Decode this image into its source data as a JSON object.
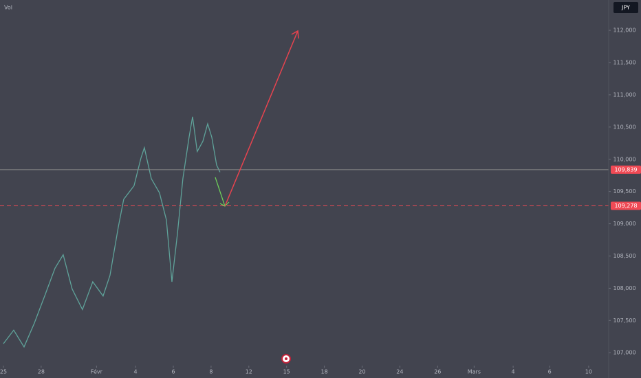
{
  "chart_data": {
    "type": "line",
    "top_label": "Vol",
    "currency": "JPY",
    "color": "#5fa39a",
    "x": [
      0,
      0.82,
      1.64,
      2.46,
      3.28,
      4.1,
      4.75,
      5.46,
      6.28,
      7.1,
      7.92,
      8.47,
      9.13,
      9.56,
      10.38,
      10.93,
      11.2,
      11.75,
      12.4,
      12.95,
      13.39,
      13.83,
      14.26,
      14.75,
      15.03,
      15.4,
      15.85,
      16.23,
      16.56,
      16.94,
      17.21
    ],
    "values": [
      107140,
      107350,
      107090,
      107460,
      107880,
      108310,
      108520,
      107990,
      107670,
      108100,
      107880,
      108200,
      108950,
      109380,
      109590,
      110020,
      110180,
      109700,
      109480,
      109060,
      108100,
      108850,
      109700,
      110340,
      110660,
      110120,
      110280,
      110550,
      110340,
      109910,
      109800
    ],
    "xlim": [
      -0.27,
      48.09
    ],
    "xticks": [
      {
        "value": 0,
        "label": "25"
      },
      {
        "value": 3,
        "label": "28"
      },
      {
        "value": 7.4,
        "label": "Févr"
      },
      {
        "value": 10.5,
        "label": "4"
      },
      {
        "value": 13.5,
        "label": "6"
      },
      {
        "value": 16.5,
        "label": "8"
      },
      {
        "value": 19.5,
        "label": "12"
      },
      {
        "value": 22.5,
        "label": "15"
      },
      {
        "value": 25.5,
        "label": "18"
      },
      {
        "value": 28.5,
        "label": "20"
      },
      {
        "value": 31.5,
        "label": "24"
      },
      {
        "value": 34.5,
        "label": "26"
      },
      {
        "value": 37.4,
        "label": "Mars"
      },
      {
        "value": 40.5,
        "label": "4"
      },
      {
        "value": 43.4,
        "label": "6"
      },
      {
        "value": 46.5,
        "label": "10"
      }
    ],
    "ylim": [
      106800,
      112470
    ],
    "yticks": [
      {
        "value": 107000,
        "label": "107,000"
      },
      {
        "value": 107500,
        "label": "107,500"
      },
      {
        "value": 108000,
        "label": "108,000"
      },
      {
        "value": 108500,
        "label": "108,500"
      },
      {
        "value": 109000,
        "label": "109,000"
      },
      {
        "value": 109500,
        "label": "109,500"
      },
      {
        "value": 110000,
        "label": "110,000"
      },
      {
        "value": 110500,
        "label": "110,500"
      },
      {
        "value": 111000,
        "label": "111,000"
      },
      {
        "value": 111500,
        "label": "111,500"
      },
      {
        "value": 112000,
        "label": "112,000"
      }
    ],
    "price_lines": [
      {
        "value": 109839,
        "label": "109,839",
        "color": "#8a8a8a",
        "dashed": false
      },
      {
        "value": 109278,
        "label": "109,278",
        "color": "#f04a55",
        "dashed": true
      }
    ]
  }
}
